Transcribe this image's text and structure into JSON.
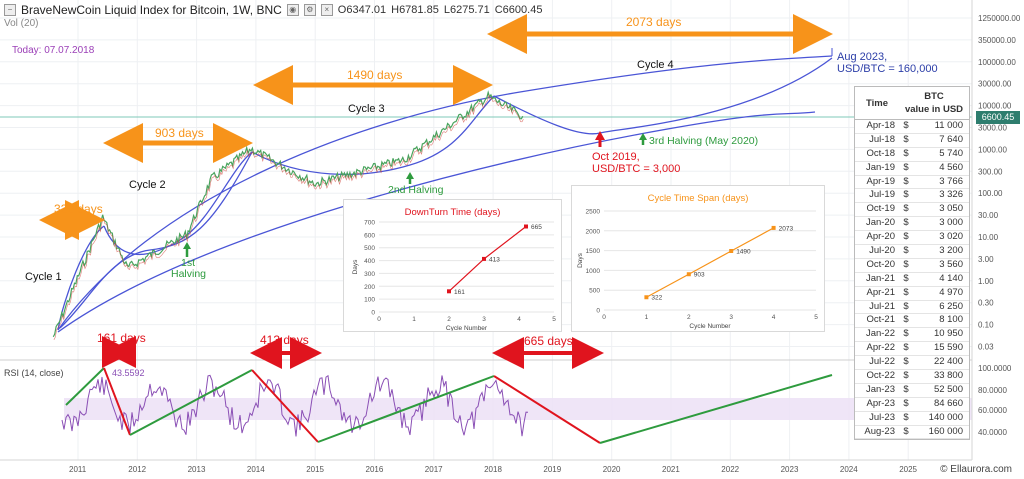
{
  "header": {
    "symbol": "BraveNewCoin Liquid Index for Bitcoin, 1W, BNC",
    "open": "O6347.01",
    "high": "H6781.85",
    "low": "L6275.71",
    "close": "C6600.45",
    "vol_label": "Vol (20)"
  },
  "today_label": "Today: 07.07.2018",
  "current_price_tag": "6600.45",
  "credit": "© Ellaurora.com",
  "colors": {
    "orange": "#f7931a",
    "red": "#e0141e",
    "green": "#2e9b3e",
    "blue": "#4a55d6",
    "purple": "#8a4fb5",
    "price_line": "#7fc9b8"
  },
  "annotations": {
    "cycle1": "Cycle 1",
    "cycle2": "Cycle 2",
    "cycle3": "Cycle 3",
    "cycle4": "Cycle 4",
    "days322": "322 days",
    "days903": "903 days",
    "days1490": "1490 days",
    "days2073": "2073 days",
    "days161": "161 days",
    "days413": "413 days",
    "days665": "665 days",
    "halving1": [
      "1st",
      "Halving"
    ],
    "halving2": "2nd Halving",
    "halving3": "3rd Halving (May 2020)",
    "oct2019": [
      "Oct 2019,",
      "USD/BTC = 3,000"
    ],
    "aug2023": [
      "Aug 2023,",
      "USD/BTC = 160,000"
    ]
  },
  "price_axis_ticks": [
    "1250000.00",
    "350000.00",
    "100000.00",
    "30000.00",
    "10000.00",
    "3000.00",
    "1000.00",
    "300.00",
    "100.00",
    "30.00",
    "10.00",
    "3.00",
    "1.00",
    "0.30",
    "0.10",
    "0.03"
  ],
  "rsi": {
    "label": "RSI (14, close)",
    "value": "43.5592",
    "ticks": [
      "100.0000",
      "80.0000",
      "60.0000",
      "40.0000"
    ]
  },
  "x_axis_years": [
    "2011",
    "2012",
    "2013",
    "2014",
    "2015",
    "2016",
    "2017",
    "2018",
    "2019",
    "2020",
    "2021",
    "2022",
    "2023",
    "2024",
    "2025"
  ],
  "table": {
    "header_time": "Time",
    "header_value": [
      "BTC",
      "value in USD"
    ],
    "currency": "$",
    "rows": [
      [
        "Apr-18",
        "11 000"
      ],
      [
        "Jul-18",
        "7 640"
      ],
      [
        "Oct-18",
        "5 740"
      ],
      [
        "Jan-19",
        "4 560"
      ],
      [
        "Apr-19",
        "3 766"
      ],
      [
        "Jul-19",
        "3 326"
      ],
      [
        "Oct-19",
        "3 050"
      ],
      [
        "Jan-20",
        "3 000"
      ],
      [
        "Apr-20",
        "3 020"
      ],
      [
        "Jul-20",
        "3 200"
      ],
      [
        "Oct-20",
        "3 560"
      ],
      [
        "Jan-21",
        "4 140"
      ],
      [
        "Apr-21",
        "4 970"
      ],
      [
        "Jul-21",
        "6 250"
      ],
      [
        "Oct-21",
        "8 100"
      ],
      [
        "Jan-22",
        "10 950"
      ],
      [
        "Apr-22",
        "15 590"
      ],
      [
        "Jul-22",
        "22 400"
      ],
      [
        "Oct-22",
        "33 800"
      ],
      [
        "Jan-23",
        "52 500"
      ],
      [
        "Apr-23",
        "84 660"
      ],
      [
        "Jul-23",
        "140 000"
      ],
      [
        "Aug-23",
        "160 000"
      ]
    ]
  },
  "chart_data": [
    {
      "type": "line",
      "title": "BraveNewCoin Liquid Index for Bitcoin, 1W, BNC",
      "y_scale": "log",
      "series": [],
      "points": [
        {
          "x": "2010-08",
          "y": 0.05
        },
        {
          "x": "2011-06",
          "y": 30
        },
        {
          "x": "2011-11",
          "y": 2
        },
        {
          "x": "2012-11",
          "y": 12
        },
        {
          "x": "2013-04",
          "y": 230
        },
        {
          "x": "2013-12",
          "y": 1150
        },
        {
          "x": "2015-01",
          "y": 180
        },
        {
          "x": "2016-07",
          "y": 650
        },
        {
          "x": "2017-12",
          "y": 19000
        },
        {
          "x": "2018-07",
          "y": 6600
        }
      ]
    },
    {
      "type": "line",
      "title": "DownTurn Time (days)",
      "xlabel": "Cycle Number",
      "ylabel": "Days",
      "x": [
        2,
        3,
        4.2
      ],
      "values": [
        161,
        413,
        665
      ],
      "data_labels": [
        "161",
        "413",
        "665"
      ],
      "xlim": [
        0,
        5
      ],
      "ylim": [
        0,
        700
      ],
      "x_ticks": [
        "0",
        "1",
        "2",
        "3",
        "4",
        "5"
      ],
      "y_ticks": [
        "0",
        "100",
        "200",
        "300",
        "400",
        "500",
        "600",
        "700"
      ]
    },
    {
      "type": "line",
      "title": "Cycle Time Span (days)",
      "xlabel": "Cycle Number",
      "ylabel": "Days",
      "x": [
        1,
        2,
        3,
        4
      ],
      "values": [
        322,
        903,
        1490,
        2073
      ],
      "data_labels": [
        "322",
        "903",
        "1490",
        "2073"
      ],
      "xlim": [
        0,
        5
      ],
      "ylim": [
        0,
        2500
      ],
      "x_ticks": [
        "0",
        "1",
        "2",
        "3",
        "4",
        "5"
      ],
      "y_ticks": [
        "0",
        "500",
        "1000",
        "1500",
        "2000",
        "2500"
      ]
    }
  ]
}
